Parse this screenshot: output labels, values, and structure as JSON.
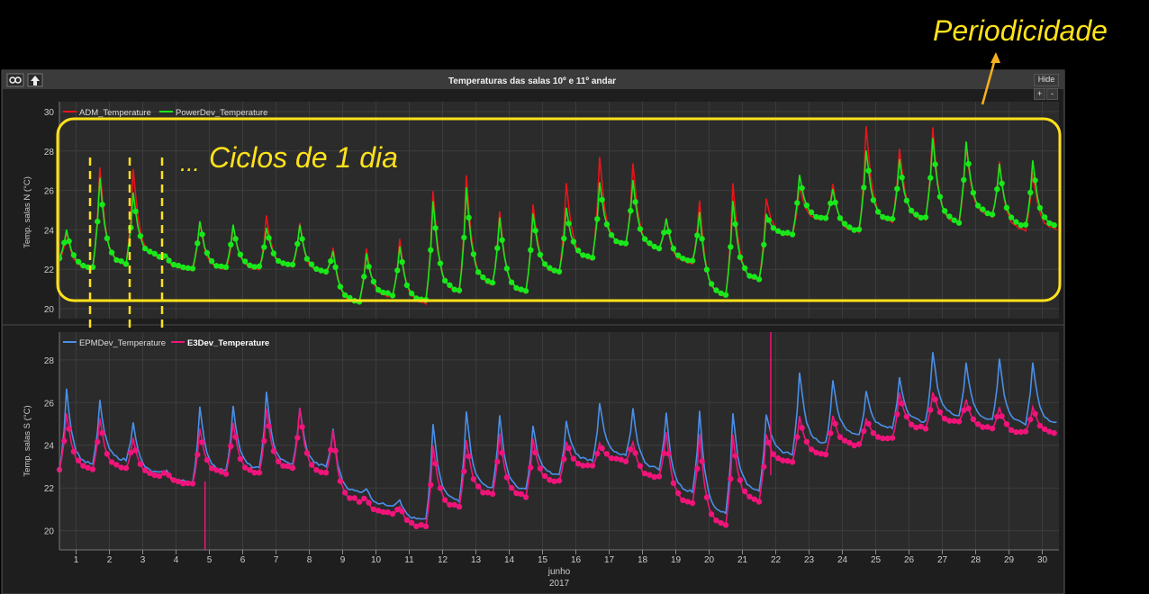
{
  "window": {
    "title": "Temperaturas das salas 10º e 11º andar",
    "hide_label": "Hide",
    "zoom_in_label": "+",
    "zoom_out_label": "-"
  },
  "annotations": {
    "periodicidade": "Periodicidade",
    "ciclos": "Ciclos de 1 dia",
    "dots": "..."
  },
  "colors": {
    "adm": "#e8141a",
    "power": "#18e81a",
    "epm": "#4a8fe8",
    "e3": "#f0147a",
    "highlight": "#ffe21a",
    "panel_bg": "#2b2b2b",
    "grid": "#3c3c3c"
  },
  "xaxis": {
    "ticks": [
      "1",
      "2",
      "3",
      "4",
      "5",
      "6",
      "7",
      "8",
      "9",
      "10",
      "11",
      "12",
      "13",
      "14",
      "15",
      "16",
      "17",
      "18",
      "19",
      "20",
      "21",
      "22",
      "23",
      "24",
      "25",
      "26",
      "27",
      "28",
      "29",
      "30"
    ],
    "month_label": "junho",
    "year_label": "2017",
    "range": [
      0.5,
      30.5
    ]
  },
  "chart_data": [
    {
      "type": "line",
      "ylabel": "Temp. salas N (°C)",
      "ylim": [
        19.5,
        30.5
      ],
      "yticks": [
        "20",
        "22",
        "24",
        "26",
        "28",
        "30"
      ],
      "legend_position": "top-left",
      "x": [
        0.5,
        1.5,
        2.5,
        3.5,
        4.5,
        5.5,
        6.5,
        7.5,
        8.5,
        9.5,
        10.5,
        11.5,
        12.5,
        13.5,
        14.5,
        15.5,
        16.5,
        17.5,
        18.5,
        19.5,
        20.5,
        21.5,
        22.5,
        23.5,
        24.5,
        25.5,
        26.5,
        27.5,
        28.5,
        29.5
      ],
      "series": [
        {
          "name": "ADM_Temperature",
          "color": "#e8141a",
          "values": [
            22.4,
            22.0,
            22.2,
            22.6,
            22.0,
            22.0,
            22.0,
            22.1,
            21.8,
            20.3,
            20.6,
            20.3,
            20.8,
            21.2,
            20.8,
            21.8,
            22.5,
            23.2,
            23.0,
            22.3,
            20.6,
            21.4,
            23.7,
            24.5,
            23.9,
            24.4,
            24.5,
            24.3,
            24.7,
            24.0
          ],
          "peaks": [
            24.0,
            27.4,
            27.3,
            22.6,
            24.4,
            24.2,
            24.8,
            24.4,
            23.2,
            23.2,
            23.6,
            26.2,
            27.0,
            25.1,
            25.5,
            26.5,
            27.9,
            27.5,
            24.6,
            25.6,
            26.6,
            25.7,
            26.3,
            26.4,
            29.4,
            28.3,
            29.4,
            28.4,
            27.6,
            27.1
          ]
        },
        {
          "name": "PowerDev_Temperature",
          "color": "#18e81a",
          "values": [
            22.5,
            22.1,
            22.3,
            22.7,
            22.1,
            22.1,
            22.1,
            22.2,
            21.9,
            20.4,
            20.7,
            20.4,
            20.9,
            21.3,
            20.9,
            21.9,
            22.6,
            23.3,
            23.1,
            22.4,
            20.7,
            21.5,
            23.8,
            24.6,
            24.0,
            24.5,
            24.6,
            24.4,
            24.8,
            24.2
          ],
          "peaks": [
            24.1,
            26.8,
            26.0,
            22.7,
            24.5,
            24.3,
            24.2,
            24.3,
            23.0,
            22.9,
            23.3,
            25.6,
            26.3,
            24.8,
            25.0,
            25.2,
            26.6,
            26.6,
            24.6,
            25.0,
            25.6,
            24.9,
            26.9,
            26.1,
            28.2,
            27.7,
            28.8,
            28.6,
            27.4,
            27.6
          ]
        }
      ]
    },
    {
      "type": "line",
      "ylabel": "Temp. salas S (°C)",
      "ylim": [
        19.1,
        29.3
      ],
      "yticks": [
        "20",
        "22",
        "24",
        "26",
        "28"
      ],
      "legend_position": "top-left",
      "x": [
        0.5,
        1.5,
        2.5,
        3.5,
        4.5,
        5.5,
        6.5,
        7.5,
        8.5,
        9.5,
        10.5,
        11.5,
        12.5,
        13.5,
        14.5,
        15.5,
        16.5,
        17.5,
        18.5,
        19.5,
        20.5,
        21.5,
        22.5,
        23.5,
        24.5,
        25.5,
        26.5,
        27.5,
        28.5,
        29.5
      ],
      "series": [
        {
          "name": "EPMDev_Temperature",
          "color": "#4a8fe8",
          "values": [
            22.8,
            23.1,
            23.3,
            22.7,
            22.3,
            22.8,
            22.9,
            23.1,
            23.0,
            21.8,
            21.2,
            20.5,
            21.4,
            22.0,
            21.9,
            22.6,
            23.3,
            23.5,
            22.9,
            21.8,
            20.8,
            21.9,
            23.6,
            24.1,
            24.5,
            24.8,
            25.1,
            25.4,
            25.2,
            25.0
          ],
          "peaks": [
            26.8,
            26.2,
            25.2,
            22.8,
            25.9,
            26.0,
            26.6,
            25.9,
            24.8,
            22.0,
            21.5,
            25.2,
            25.8,
            25.6,
            25.0,
            25.2,
            26.1,
            25.8,
            25.6,
            25.8,
            25.7,
            25.6,
            27.6,
            27.2,
            26.6,
            27.3,
            28.5,
            28.0,
            28.2,
            28.0
          ]
        },
        {
          "name": "E3Dev_Temperature",
          "color": "#f0147a",
          "values": [
            22.9,
            22.9,
            22.9,
            22.6,
            22.2,
            22.7,
            22.7,
            22.9,
            22.7,
            21.4,
            20.8,
            20.2,
            21.1,
            21.7,
            21.6,
            22.3,
            23.0,
            23.3,
            22.5,
            21.3,
            20.3,
            21.4,
            23.2,
            23.6,
            24.0,
            24.3,
            24.8,
            25.1,
            24.8,
            24.6
          ],
          "peaks": [
            25.6,
            25.4,
            24.4,
            22.7,
            24.9,
            25.2,
            25.8,
            25.9,
            24.8,
            21.5,
            21.2,
            24.1,
            24.4,
            24.7,
            24.4,
            24.3,
            24.2,
            24.2,
            24.7,
            24.6,
            24.6,
            24.6,
            25.5,
            25.5,
            25.3,
            26.5,
            26.6,
            26.2,
            25.8,
            25.9
          ]
        }
      ]
    }
  ]
}
